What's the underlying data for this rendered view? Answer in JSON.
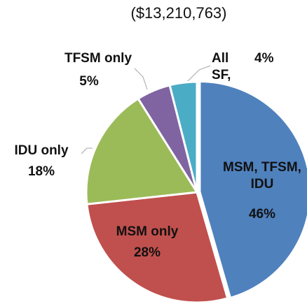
{
  "chart_data": {
    "type": "pie",
    "subtitle": "($13,210,763)",
    "categories": [
      "MSM, TFSM, IDU",
      "MSM only",
      "IDU only",
      "TFSM only",
      "All SF,"
    ],
    "values": [
      46,
      28,
      18,
      5,
      4
    ],
    "value_labels": [
      "46%",
      "28%",
      "18%",
      "5%",
      "4%"
    ],
    "colors": [
      "#4f81bd",
      "#c0504d",
      "#9bbb59",
      "#8064a2",
      "#4bacc6"
    ]
  }
}
